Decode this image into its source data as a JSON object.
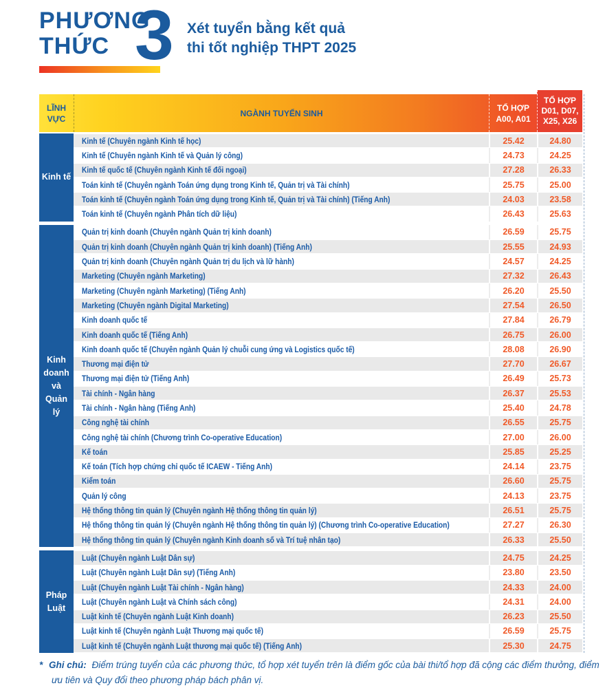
{
  "header": {
    "method_label_line1": "PHƯƠNG",
    "method_label_line2": "THỨC",
    "method_number": "3",
    "subtitle_line1": "Xét tuyển bằng kết quả",
    "subtitle_line2": "thi tốt nghiệp THPT 2025"
  },
  "colors": {
    "blue": "#1B5B9E",
    "row_text_blue": "#1A5AA6",
    "score_orange": "#F05A28",
    "row_gray": "#E9E9E9",
    "header_gradient_start": "#FFE13A",
    "header_gradient_end": "#E9402F",
    "bar_gradient_start": "#EC3323",
    "bar_gradient_end": "#FFD41C"
  },
  "table": {
    "columns": {
      "field": "LĨNH\nVỰC",
      "major": "NGÀNH TUYỂN SINH",
      "combo1": "TỔ HỢP\nA00, A01",
      "combo2": "TỔ HỢP\nD01, D07,\nX25, X26"
    },
    "groups": [
      {
        "label": "Kinh tế",
        "zebra_start": "gray",
        "rows": [
          {
            "major": "Kinh tế (Chuyên ngành Kinh tế học)",
            "a00_a01": "25.42",
            "d01_d07_x25_x26": "24.80"
          },
          {
            "major": "Kinh tế (Chuyên ngành Kinh tế và Quản lý công)",
            "a00_a01": "24.73",
            "d01_d07_x25_x26": "24.25"
          },
          {
            "major": "Kinh tế quốc tế (Chuyên ngành Kinh tế đối ngoại)",
            "a00_a01": "27.28",
            "d01_d07_x25_x26": "26.33"
          },
          {
            "major": "Toán kinh tế (Chuyên ngành Toán ứng dụng trong Kinh tế, Quản trị và Tài chính)",
            "a00_a01": "25.75",
            "d01_d07_x25_x26": "25.00"
          },
          {
            "major": "Toán kinh tế (Chuyên ngành Toán ứng dụng trong Kinh tế, Quản trị và Tài chính) (Tiếng Anh)",
            "a00_a01": "24.03",
            "d01_d07_x25_x26": "23.58"
          },
          {
            "major": "Toán kinh tế (Chuyên ngành Phân tích dữ liệu)",
            "a00_a01": "26.43",
            "d01_d07_x25_x26": "25.63"
          }
        ]
      },
      {
        "label": "Kinh\ndoanh\nvà\nQuản\nlý",
        "zebra_start": "white",
        "rows": [
          {
            "major": "Quản trị kinh doanh (Chuyên ngành Quản trị kinh doanh)",
            "a00_a01": "26.59",
            "d01_d07_x25_x26": "25.75"
          },
          {
            "major": "Quản trị kinh doanh (Chuyên ngành Quản trị kinh doanh) (Tiếng Anh)",
            "a00_a01": "25.55",
            "d01_d07_x25_x26": "24.93"
          },
          {
            "major": "Quản trị kinh doanh (Chuyên ngành Quản trị du lịch và lữ hành)",
            "a00_a01": "24.57",
            "d01_d07_x25_x26": "24.25"
          },
          {
            "major": "Marketing (Chuyên ngành Marketing)",
            "a00_a01": "27.32",
            "d01_d07_x25_x26": "26.43"
          },
          {
            "major": "Marketing (Chuyên ngành Marketing) (Tiếng Anh)",
            "a00_a01": "26.20",
            "d01_d07_x25_x26": "25.50"
          },
          {
            "major": "Marketing (Chuyên ngành Digital Marketing)",
            "a00_a01": "27.54",
            "d01_d07_x25_x26": "26.50"
          },
          {
            "major": "Kinh doanh quốc tế",
            "a00_a01": "27.84",
            "d01_d07_x25_x26": "26.79"
          },
          {
            "major": "Kinh doanh quốc tế (Tiếng Anh)",
            "a00_a01": "26.75",
            "d01_d07_x25_x26": "26.00"
          },
          {
            "major": "Kinh doanh quốc tế (Chuyên ngành Quản lý chuỗi cung ứng và Logistics quốc tế)",
            "a00_a01": "28.08",
            "d01_d07_x25_x26": "26.90"
          },
          {
            "major": "Thương mại điện tử",
            "a00_a01": "27.70",
            "d01_d07_x25_x26": "26.67"
          },
          {
            "major": "Thương mại điện tử (Tiếng Anh)",
            "a00_a01": "26.49",
            "d01_d07_x25_x26": "25.73"
          },
          {
            "major": "Tài chính - Ngân hàng",
            "a00_a01": "26.37",
            "d01_d07_x25_x26": "25.53"
          },
          {
            "major": "Tài chính - Ngân hàng (Tiếng Anh)",
            "a00_a01": "25.40",
            "d01_d07_x25_x26": "24.78"
          },
          {
            "major": "Công nghệ tài chính",
            "a00_a01": "26.55",
            "d01_d07_x25_x26": "25.75"
          },
          {
            "major": "Công nghệ tài chính (Chương trình Co-operative Education)",
            "a00_a01": "27.00",
            "d01_d07_x25_x26": "26.00"
          },
          {
            "major": "Kế toán",
            "a00_a01": "25.85",
            "d01_d07_x25_x26": "25.25"
          },
          {
            "major": "Kế toán (Tích hợp chứng chỉ quốc tế ICAEW - Tiếng Anh)",
            "a00_a01": "24.14",
            "d01_d07_x25_x26": "23.75"
          },
          {
            "major": "Kiểm toán",
            "a00_a01": "26.60",
            "d01_d07_x25_x26": "25.75"
          },
          {
            "major": "Quản lý công",
            "a00_a01": "24.13",
            "d01_d07_x25_x26": "23.75"
          },
          {
            "major": "Hệ thống thông tin quản lý (Chuyên ngành Hệ thống thông tin quản lý)",
            "a00_a01": "26.51",
            "d01_d07_x25_x26": "25.75"
          },
          {
            "major": "Hệ thống thông tin quản lý (Chuyên ngành Hệ thống thông tin quản lý) (Chương trình Co-operative Education)",
            "a00_a01": "27.27",
            "d01_d07_x25_x26": "26.30"
          },
          {
            "major": "Hệ thống thông tin quản lý (Chuyên ngành Kinh doanh số và Trí tuệ nhân tạo)",
            "a00_a01": "26.33",
            "d01_d07_x25_x26": "25.50"
          }
        ]
      },
      {
        "label": "Pháp\nLuật",
        "zebra_start": "gray",
        "rows": [
          {
            "major": "Luật (Chuyên ngành Luật Dân sự)",
            "a00_a01": "24.75",
            "d01_d07_x25_x26": "24.25"
          },
          {
            "major": "Luật (Chuyên ngành Luật Dân sự) (Tiếng Anh)",
            "a00_a01": "23.80",
            "d01_d07_x25_x26": "23.50"
          },
          {
            "major": "Luật (Chuyên ngành Luật Tài chính - Ngân hàng)",
            "a00_a01": "24.33",
            "d01_d07_x25_x26": "24.00"
          },
          {
            "major": "Luật (Chuyên ngành Luật và Chính sách công)",
            "a00_a01": "24.31",
            "d01_d07_x25_x26": "24.00"
          },
          {
            "major": "Luật kinh tế (Chuyên ngành Luật Kinh doanh)",
            "a00_a01": "26.23",
            "d01_d07_x25_x26": "25.50"
          },
          {
            "major": "Luật kinh tế (Chuyên ngành Luật Thương mại quốc tế)",
            "a00_a01": "26.59",
            "d01_d07_x25_x26": "25.75"
          },
          {
            "major": "Luật kinh tế (Chuyên ngành Luật thương mại quốc tế) (Tiếng Anh)",
            "a00_a01": "25.30",
            "d01_d07_x25_x26": "24.75"
          }
        ]
      }
    ]
  },
  "footnote": {
    "marker": "*",
    "label": "Ghi chú:",
    "text": "Điểm trúng tuyển của các phương thức, tổ hợp xét tuyển trên là điểm gốc của bài thi/tổ hợp đã cộng các điểm thưởng, điểm ưu tiên và Quy đổi theo phương pháp bách phân vị."
  }
}
